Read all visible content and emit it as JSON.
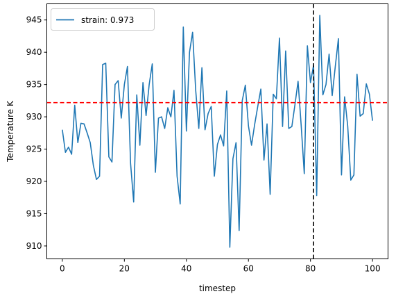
{
  "chart_data": {
    "type": "line",
    "title": "",
    "xlabel": "timestep",
    "ylabel": "Temperature K",
    "xlim": [
      -5,
      105
    ],
    "ylim": [
      908,
      947.5
    ],
    "xticks": [
      0,
      20,
      40,
      60,
      80,
      100
    ],
    "yticks": [
      910,
      915,
      920,
      925,
      930,
      935,
      940,
      945
    ],
    "xtick_labels": [
      "0",
      "20",
      "40",
      "60",
      "80",
      "100"
    ],
    "ytick_labels": [
      "910",
      "915",
      "920",
      "925",
      "930",
      "935",
      "940",
      "945"
    ],
    "grid": false,
    "legend_position": "top-left",
    "series": [
      {
        "name": "strain: 0.973",
        "color": "#1f77b4",
        "x": [
          0,
          1,
          2,
          3,
          4,
          5,
          6,
          7,
          8,
          9,
          10,
          11,
          12,
          13,
          14,
          15,
          16,
          17,
          18,
          19,
          20,
          21,
          22,
          23,
          24,
          25,
          26,
          27,
          28,
          29,
          30,
          31,
          32,
          33,
          34,
          35,
          36,
          37,
          38,
          39,
          40,
          41,
          42,
          43,
          44,
          45,
          46,
          47,
          48,
          49,
          50,
          51,
          52,
          53,
          54,
          55,
          56,
          57,
          58,
          59,
          60,
          61,
          62,
          63,
          64,
          65,
          66,
          67,
          68,
          69,
          70,
          71,
          72,
          73,
          74,
          75,
          76,
          77,
          78,
          79,
          80,
          81,
          82,
          83,
          84,
          85,
          86,
          87,
          88,
          89,
          90,
          91,
          92,
          93,
          94,
          95,
          96,
          97,
          98,
          99,
          100
        ],
        "y": [
          928.0,
          924.5,
          925.3,
          924.2,
          931.8,
          926.0,
          929.0,
          928.9,
          927.5,
          926.0,
          922.5,
          920.3,
          920.8,
          938.1,
          938.3,
          923.8,
          923.0,
          935.0,
          935.6,
          929.8,
          935.0,
          937.8,
          922.8,
          916.8,
          933.4,
          925.6,
          935.3,
          930.2,
          935.0,
          938.2,
          921.4,
          929.8,
          930.0,
          928.2,
          931.4,
          930.0,
          934.1,
          920.8,
          916.5,
          943.9,
          927.8,
          940.0,
          943.1,
          934.1,
          928.2,
          937.6,
          928.0,
          930.5,
          931.6,
          920.8,
          925.7,
          927.2,
          925.5,
          934.0,
          909.8,
          923.5,
          926.0,
          912.4,
          932.5,
          934.9,
          928.6,
          925.6,
          928.8,
          931.6,
          934.3,
          923.3,
          928.9,
          918.0,
          933.5,
          932.8,
          942.2,
          928.5,
          940.2,
          928.2,
          928.5,
          931.9,
          935.5,
          928.7,
          921.2,
          941.0,
          935.3,
          938.0,
          917.8,
          945.7,
          933.4,
          935.0,
          939.7,
          933.3,
          937.8,
          942.1,
          921.0,
          933.1,
          928.6,
          920.2,
          921.0,
          936.6,
          930.1,
          930.5,
          935.1,
          933.5,
          929.4
        ]
      }
    ],
    "reference_lines": [
      {
        "orientation": "horizontal",
        "value": 932.2,
        "color": "#ff0000",
        "style": "dashed"
      },
      {
        "orientation": "vertical",
        "value": 81,
        "color": "#000000",
        "style": "dashed"
      }
    ]
  }
}
